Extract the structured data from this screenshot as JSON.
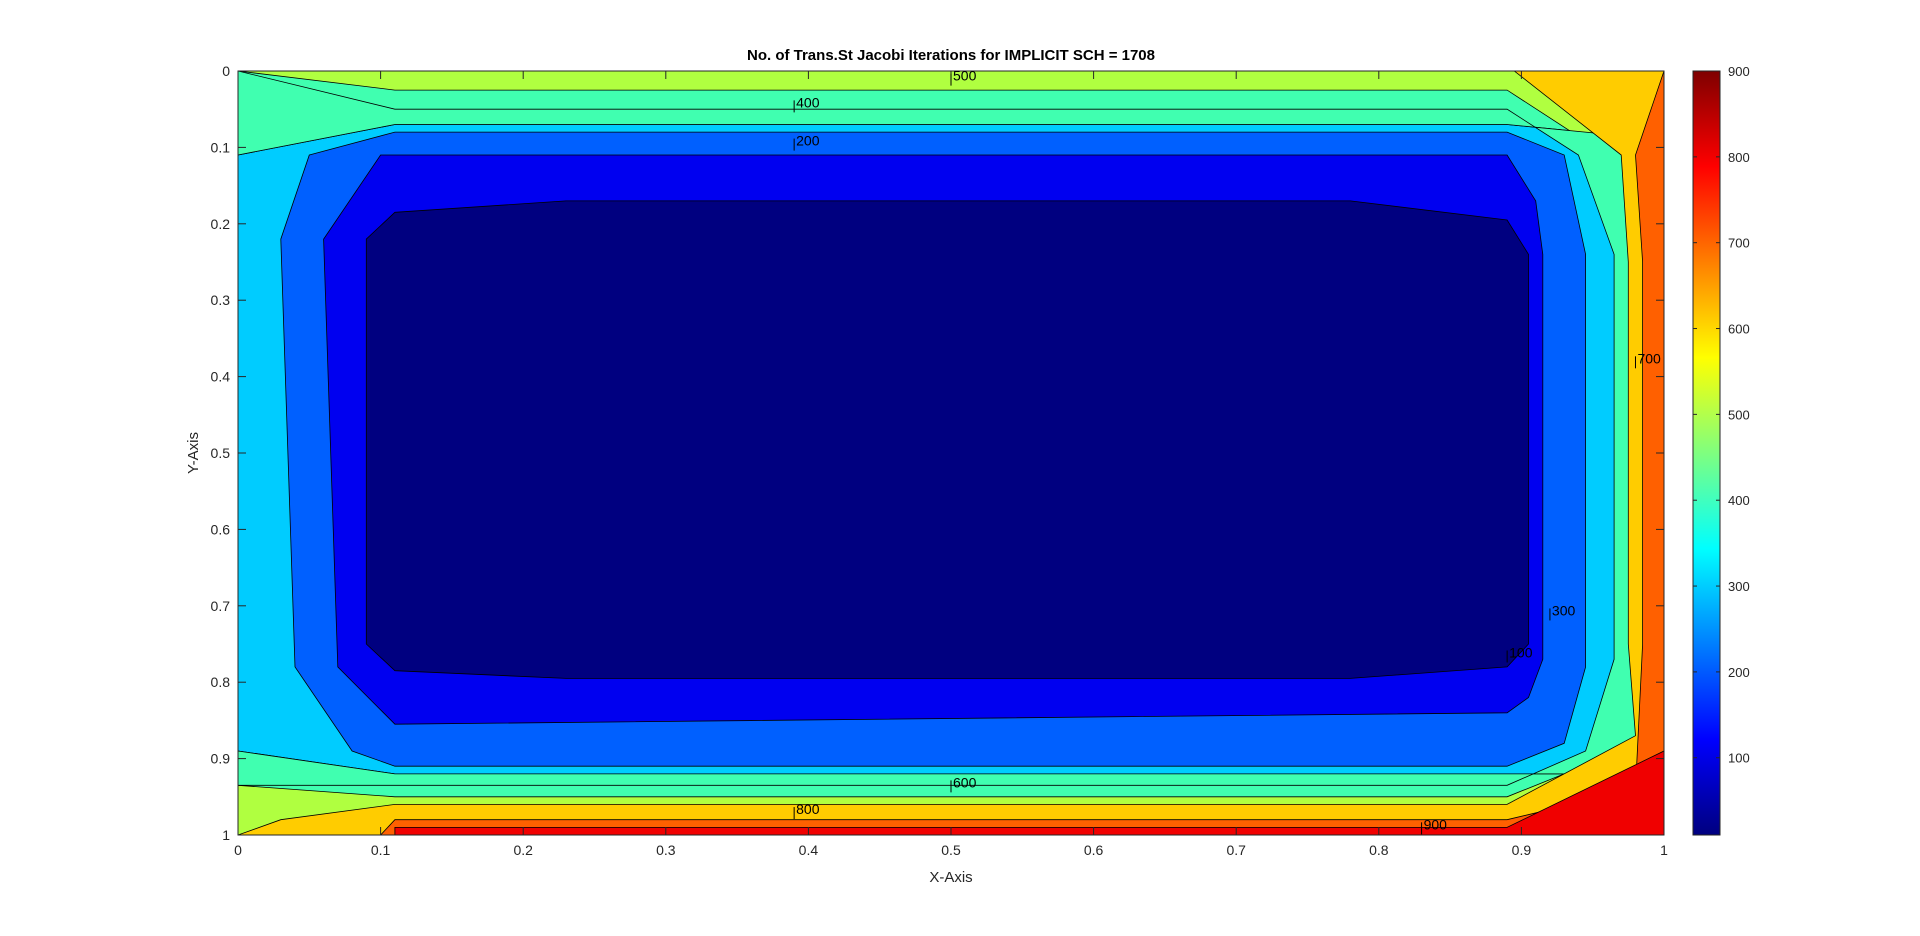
{
  "chart_data": {
    "type": "contour",
    "title": "No. of Trans.St Jacobi Iterations for IMPLICIT SCH = 1708",
    "xlabel": "X-Axis",
    "ylabel": "Y-Axis",
    "xlim": [
      0,
      1
    ],
    "ylim": [
      0,
      1
    ],
    "y_direction": "reversed",
    "x_ticks": [
      "0",
      "0.1",
      "0.2",
      "0.3",
      "0.4",
      "0.5",
      "0.6",
      "0.7",
      "0.8",
      "0.9",
      "1"
    ],
    "y_ticks": [
      "0",
      "0.1",
      "0.2",
      "0.3",
      "0.4",
      "0.5",
      "0.6",
      "0.7",
      "0.8",
      "0.9",
      "1"
    ],
    "colormap": "jet",
    "levels": [
      0,
      100,
      200,
      300,
      400,
      500,
      600,
      700,
      800,
      900
    ],
    "level_colors": [
      "#000080",
      "#0000F0",
      "#0060FF",
      "#00CCFF",
      "#40FFB0",
      "#B0FF40",
      "#FFCC00",
      "#FF6000",
      "#F00000",
      "#800000"
    ],
    "colorbar": {
      "range": [
        10,
        900
      ],
      "ticks": [
        "100",
        "200",
        "300",
        "400",
        "500",
        "600",
        "700",
        "800",
        "900"
      ]
    },
    "contour_labels": [
      {
        "text": "500",
        "x": 0.5,
        "y": 0.01
      },
      {
        "text": "400",
        "x": 0.39,
        "y": 0.045
      },
      {
        "text": "200",
        "x": 0.39,
        "y": 0.095
      },
      {
        "text": "700",
        "x": 0.98,
        "y": 0.38
      },
      {
        "text": "300",
        "x": 0.92,
        "y": 0.71
      },
      {
        "text": "100",
        "x": 0.89,
        "y": 0.765
      },
      {
        "text": "600",
        "x": 0.5,
        "y": 0.935
      },
      {
        "text": "800",
        "x": 0.39,
        "y": 0.97
      },
      {
        "text": "900",
        "x": 0.83,
        "y": 0.99
      }
    ],
    "regions": [
      {
        "level": 400,
        "polygon": [
          [
            0,
            0
          ],
          [
            1,
            0
          ],
          [
            1,
            1
          ],
          [
            0,
            1
          ]
        ]
      },
      {
        "level": 300,
        "polygon": [
          [
            0,
            0.11
          ],
          [
            0.11,
            0.07
          ],
          [
            0.89,
            0.07
          ],
          [
            1,
            0.09
          ],
          [
            1,
            0.92
          ],
          [
            0.89,
            0.92
          ],
          [
            0.11,
            0.92
          ],
          [
            0,
            0.89
          ]
        ]
      },
      {
        "level": 500,
        "polygon": [
          [
            0.11,
            0.025
          ],
          [
            0.89,
            0.025
          ],
          [
            0.96,
            0.11
          ],
          [
            0.99,
            0.26
          ],
          [
            0.99,
            0.75
          ],
          [
            0.97,
            0.89
          ],
          [
            0.89,
            0.95
          ],
          [
            0.11,
            0.95
          ],
          [
            0,
            0.935
          ],
          [
            0,
            1
          ],
          [
            1,
            1
          ],
          [
            1,
            0
          ],
          [
            0,
            0
          ]
        ]
      },
      {
        "level": 400,
        "polygon": [
          [
            0.11,
            0.05
          ],
          [
            0.89,
            0.05
          ],
          [
            0.94,
            0.11
          ],
          [
            0.965,
            0.24
          ],
          [
            0.965,
            0.77
          ],
          [
            0.945,
            0.89
          ],
          [
            0.89,
            0.935
          ],
          [
            0.11,
            0.935
          ],
          [
            0,
            0.935
          ],
          [
            0,
            0.89
          ],
          [
            0.11,
            0.92
          ],
          [
            0.89,
            0.92
          ],
          [
            1,
            0.92
          ],
          [
            1,
            0.09
          ],
          [
            0.89,
            0.07
          ],
          [
            0.11,
            0.07
          ],
          [
            0,
            0.11
          ],
          [
            0,
            0
          ]
        ]
      },
      {
        "level": 600,
        "polygon": [
          [
            0.895,
            0
          ],
          [
            1,
            0
          ],
          [
            1,
            1
          ],
          [
            0,
            1
          ],
          [
            0.03,
            0.98
          ],
          [
            0.11,
            0.96
          ],
          [
            0.89,
            0.96
          ],
          [
            0.98,
            0.87
          ],
          [
            0.975,
            0.75
          ],
          [
            0.975,
            0.25
          ],
          [
            0.97,
            0.11
          ]
        ]
      },
      {
        "level": 700,
        "polygon": [
          [
            1,
            0
          ],
          [
            1,
            1
          ],
          [
            0.1,
            1
          ],
          [
            0.11,
            0.98
          ],
          [
            0.89,
            0.98
          ],
          [
            0.98,
            0.94
          ],
          [
            0.985,
            0.75
          ],
          [
            0.985,
            0.25
          ],
          [
            0.98,
            0.11
          ]
        ]
      },
      {
        "level": 800,
        "polygon": [
          [
            1,
            0.89
          ],
          [
            1,
            1
          ],
          [
            0.89,
            1
          ],
          [
            0.11,
            1
          ],
          [
            0.11,
            0.99
          ],
          [
            0.89,
            0.99
          ]
        ]
      },
      {
        "level": 200,
        "polygon": [
          [
            0.05,
            0.11
          ],
          [
            0.11,
            0.08
          ],
          [
            0.89,
            0.08
          ],
          [
            0.93,
            0.11
          ],
          [
            0.945,
            0.24
          ],
          [
            0.945,
            0.78
          ],
          [
            0.93,
            0.88
          ],
          [
            0.89,
            0.91
          ],
          [
            0.11,
            0.91
          ],
          [
            0.08,
            0.89
          ],
          [
            0.04,
            0.78
          ],
          [
            0.03,
            0.22
          ]
        ]
      },
      {
        "level": 100,
        "polygon": [
          [
            0.1,
            0.11
          ],
          [
            0.89,
            0.11
          ],
          [
            0.91,
            0.17
          ],
          [
            0.915,
            0.24
          ],
          [
            0.915,
            0.77
          ],
          [
            0.905,
            0.82
          ],
          [
            0.89,
            0.84
          ],
          [
            0.11,
            0.855
          ],
          [
            0.07,
            0.78
          ],
          [
            0.06,
            0.22
          ]
        ]
      },
      {
        "level": 0,
        "polygon": [
          [
            0.11,
            0.185
          ],
          [
            0.23,
            0.17
          ],
          [
            0.78,
            0.17
          ],
          [
            0.89,
            0.195
          ],
          [
            0.905,
            0.24
          ],
          [
            0.905,
            0.75
          ],
          [
            0.89,
            0.78
          ],
          [
            0.78,
            0.795
          ],
          [
            0.23,
            0.795
          ],
          [
            0.11,
            0.785
          ],
          [
            0.09,
            0.75
          ],
          [
            0.09,
            0.22
          ]
        ]
      }
    ]
  }
}
